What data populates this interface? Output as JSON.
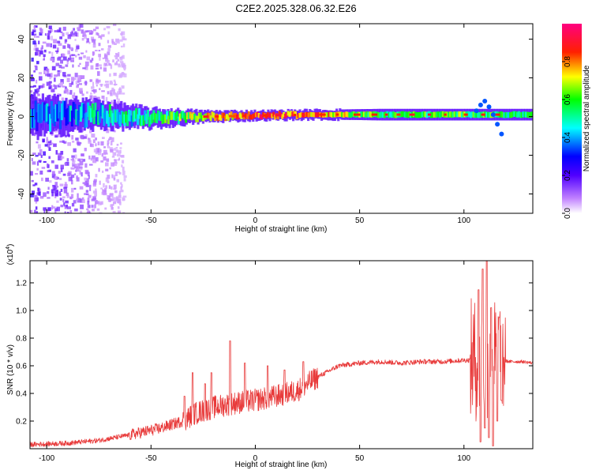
{
  "title": "C2E2.2025.328.06.32.E26",
  "chart_data": [
    {
      "type": "heatmap",
      "name": "spectrogram",
      "xlabel": "Height of straight line (km)",
      "ylabel": "Frequency (Hz)",
      "xlim": [
        -108,
        133
      ],
      "ylim": [
        -50,
        48
      ],
      "xticks": [
        -100,
        -50,
        0,
        50,
        100
      ],
      "yticks": [
        -40,
        -20,
        0,
        20,
        40
      ],
      "colorbar": {
        "label": "Normalized spectral amplitude",
        "range": [
          0,
          1
        ],
        "ticks": [
          "0.0",
          "0.2",
          "0.4",
          "0.6",
          "0.8"
        ],
        "tick_values": [
          0,
          0.2,
          0.4,
          0.6,
          0.8
        ],
        "stops": [
          "#ffffff",
          "#8000ff",
          "#0000ff",
          "#00ffff",
          "#00ff00",
          "#ffff00",
          "#ff0000",
          "#ff00ff"
        ]
      },
      "band_profile": [
        {
          "x": -108,
          "center": 0,
          "halfwidth": 10,
          "amplitude": 0.35
        },
        {
          "x": -75,
          "center": 1,
          "halfwidth": 7,
          "amplitude": 0.45
        },
        {
          "x": -50,
          "center": -1,
          "halfwidth": 5,
          "amplitude": 0.5
        },
        {
          "x": -25,
          "center": 0,
          "halfwidth": 3,
          "amplitude": 0.7
        },
        {
          "x": 0,
          "center": 0.5,
          "halfwidth": 2.5,
          "amplitude": 0.85
        },
        {
          "x": 30,
          "center": 1,
          "halfwidth": 2.5,
          "amplitude": 0.8
        },
        {
          "x": 60,
          "center": 1,
          "halfwidth": 3,
          "amplitude": 0.55
        },
        {
          "x": 100,
          "center": 1,
          "halfwidth": 3,
          "amplitude": 0.6
        },
        {
          "x": 133,
          "center": 1,
          "halfwidth": 3,
          "amplitude": 0.5
        }
      ]
    },
    {
      "type": "line",
      "name": "snr",
      "xlabel": "Height of straight line (km)",
      "ylabel": "SNR (10 * v/v)",
      "scale_label_base": "(x10",
      "scale_label_exp": "4",
      "scale_label_end": ")",
      "xlim": [
        -108,
        133
      ],
      "ylim": [
        0,
        1.36
      ],
      "xticks": [
        -100,
        -50,
        0,
        50,
        100
      ],
      "yticks": [
        0.2,
        0.4,
        0.6,
        0.8,
        1.0,
        1.2
      ],
      "ytick_labels": [
        "0.2",
        "0.4",
        "0.6",
        "0.8",
        "1.0",
        "1.2"
      ],
      "color": "#e83a3a",
      "series": [
        {
          "name": "SNR",
          "x": [
            -108,
            -90,
            -75,
            -60,
            -45,
            -35,
            -28,
            -20,
            -10,
            0,
            10,
            20,
            30,
            40,
            50,
            60,
            70,
            80,
            90,
            100,
            105,
            108,
            110,
            112,
            114,
            116,
            118,
            122,
            128,
            133
          ],
          "y": [
            0.03,
            0.04,
            0.06,
            0.1,
            0.15,
            0.2,
            0.26,
            0.3,
            0.33,
            0.35,
            0.38,
            0.42,
            0.52,
            0.6,
            0.62,
            0.63,
            0.62,
            0.63,
            0.63,
            0.64,
            0.64,
            0.64,
            0.64,
            0.64,
            0.64,
            0.64,
            0.64,
            0.63,
            0.63,
            0.62
          ]
        }
      ],
      "peaks": [
        {
          "x": -34,
          "y": 0.38
        },
        {
          "x": -30,
          "y": 0.55
        },
        {
          "x": -24,
          "y": 0.47
        },
        {
          "x": -21,
          "y": 0.55
        },
        {
          "x": -12,
          "y": 0.78
        },
        {
          "x": -5,
          "y": 0.62
        },
        {
          "x": 6,
          "y": 0.6
        },
        {
          "x": 14,
          "y": 0.57
        },
        {
          "x": 23,
          "y": 0.63
        },
        {
          "x": 107,
          "y": 1.15
        },
        {
          "x": 109,
          "y": 1.3
        },
        {
          "x": 111,
          "y": 1.36
        },
        {
          "x": 113,
          "y": 1.02
        },
        {
          "x": 117,
          "y": 0.95
        }
      ],
      "troughs": [
        {
          "x": 108,
          "y": 0.05
        },
        {
          "x": 110,
          "y": 0.15
        },
        {
          "x": 112,
          "y": 0.08
        },
        {
          "x": 114,
          "y": 0.02
        },
        {
          "x": 116,
          "y": 0.2
        },
        {
          "x": 118,
          "y": 0.35
        }
      ]
    }
  ]
}
